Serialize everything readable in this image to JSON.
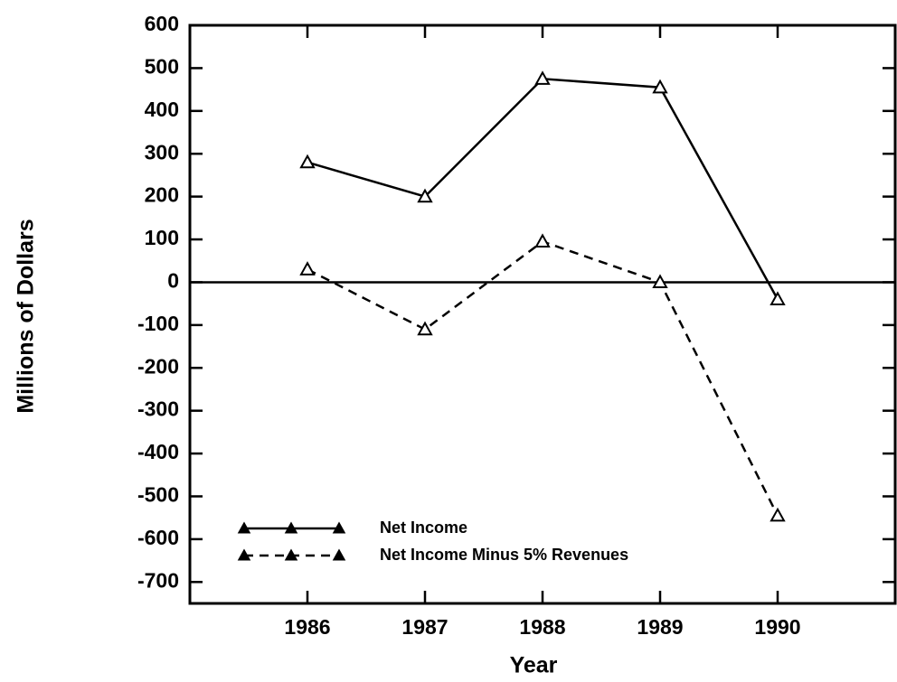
{
  "chart_data": {
    "type": "line",
    "x_label": "Year",
    "y_label": "Millions of Dollars",
    "x": [
      1986,
      1987,
      1988,
      1989,
      1990
    ],
    "series": [
      {
        "name": "Net Income",
        "color": "#000000",
        "dash": false,
        "values": [
          280,
          200,
          475,
          455,
          -40
        ]
      },
      {
        "name": "Net Income Minus 5% Revenues",
        "color": "#000000",
        "dash": true,
        "values": [
          30,
          -110,
          95,
          0,
          -545
        ]
      }
    ],
    "xlim": [
      1985,
      1991
    ],
    "xticks": [
      1986,
      1987,
      1988,
      1989,
      1990
    ],
    "ylim": [
      -750,
      600
    ],
    "yticks": [
      600,
      500,
      400,
      300,
      200,
      100,
      0,
      -100,
      -200,
      -300,
      -400,
      -500,
      -600,
      -700
    ],
    "grid": false,
    "legend": "lower left"
  }
}
